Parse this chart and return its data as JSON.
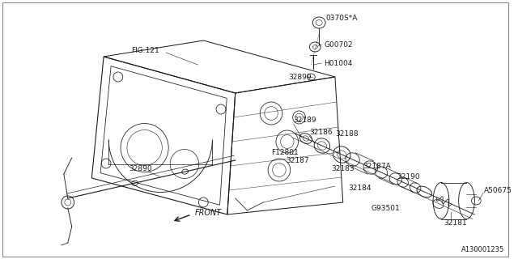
{
  "bg_color": "#ffffff",
  "line_color": "#1a1a1a",
  "diagram_id": "A130001235",
  "front_label": "FRONT",
  "fig_label": "FIG.121",
  "border_color": "#cccccc"
}
